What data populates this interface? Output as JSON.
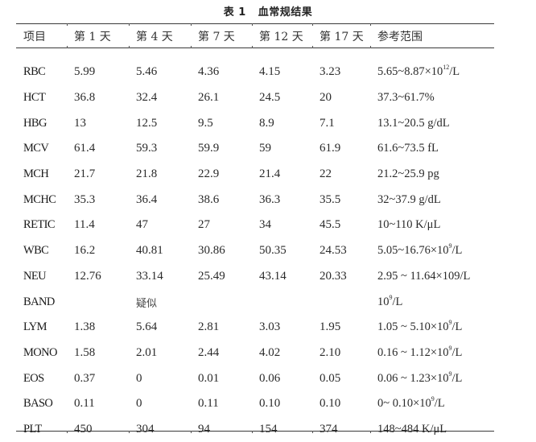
{
  "caption": {
    "label": "表 1",
    "title": "血常规结果"
  },
  "table": {
    "headers": [
      "项目",
      "第 1 天",
      "第 4 天",
      "第 7 天",
      "第 12 天",
      "第 17 天",
      "参考范围"
    ],
    "rows": [
      {
        "item": "RBC",
        "d1": "5.99",
        "d4": "5.46",
        "d7": "4.36",
        "d12": "4.15",
        "d17": "3.23",
        "ref_pre": "5.65~8.87×10",
        "ref_sup": "12",
        "ref_post": "/L"
      },
      {
        "item": "HCT",
        "d1": "36.8",
        "d4": "32.4",
        "d7": "26.1",
        "d12": "24.5",
        "d17": "20",
        "ref_pre": "37.3~61.7%",
        "ref_sup": "",
        "ref_post": ""
      },
      {
        "item": "HBG",
        "d1": "13",
        "d4": "12.5",
        "d7": "9.5",
        "d12": "8.9",
        "d17": "7.1",
        "ref_pre": "13.1~20.5 g/dL",
        "ref_sup": "",
        "ref_post": ""
      },
      {
        "item": "MCV",
        "d1": "61.4",
        "d4": "59.3",
        "d7": "59.9",
        "d12": "59",
        "d17": "61.9",
        "ref_pre": "61.6~73.5 fL",
        "ref_sup": "",
        "ref_post": ""
      },
      {
        "item": "MCH",
        "d1": "21.7",
        "d4": "21.8",
        "d7": "22.9",
        "d12": "21.4",
        "d17": "22",
        "ref_pre": "21.2~25.9 pg",
        "ref_sup": "",
        "ref_post": ""
      },
      {
        "item": "MCHC",
        "d1": "35.3",
        "d4": "36.4",
        "d7": "38.6",
        "d12": "36.3",
        "d17": "35.5",
        "ref_pre": "32~37.9 g/dL",
        "ref_sup": "",
        "ref_post": ""
      },
      {
        "item": "RETIC",
        "d1": "11.4",
        "d4": "47",
        "d7": "27",
        "d12": "34",
        "d17": "45.5",
        "ref_pre": "10~110 K/μL",
        "ref_sup": "",
        "ref_post": ""
      },
      {
        "item": "WBC",
        "d1": "16.2",
        "d4": "40.81",
        "d7": "30.86",
        "d12": "50.35",
        "d17": "24.53",
        "ref_pre": "5.05~16.76×10",
        "ref_sup": "9",
        "ref_post": "/L"
      },
      {
        "item": "NEU",
        "d1": "12.76",
        "d4": "33.14",
        "d7": "25.49",
        "d12": "43.14",
        "d17": "20.33",
        "ref_pre": "2.95 ~ 11.64×109/L",
        "ref_sup": "",
        "ref_post": ""
      },
      {
        "item": "BAND",
        "d1": "",
        "d4": "疑似",
        "d7": "",
        "d12": "",
        "d17": "",
        "ref_pre": "10",
        "ref_sup": "9",
        "ref_post": "/L"
      },
      {
        "item": "LYM",
        "d1": "1.38",
        "d4": "5.64",
        "d7": "2.81",
        "d12": "3.03",
        "d17": "1.95",
        "ref_pre": "1.05 ~ 5.10×10",
        "ref_sup": "9",
        "ref_post": "/L"
      },
      {
        "item": "MONO",
        "d1": "1.58",
        "d4": "2.01",
        "d7": "2.44",
        "d12": "4.02",
        "d17": "2.10",
        "ref_pre": "0.16 ~ 1.12×10",
        "ref_sup": "9",
        "ref_post": "/L"
      },
      {
        "item": "EOS",
        "d1": "0.37",
        "d4": "0",
        "d7": "0.01",
        "d12": "0.06",
        "d17": "0.05",
        "ref_pre": "0.06 ~ 1.23×10",
        "ref_sup": "9",
        "ref_post": "/L"
      },
      {
        "item": "BASO",
        "d1": "0.11",
        "d4": "0",
        "d7": "0.11",
        "d12": "0.10",
        "d17": "0.10",
        "ref_pre": "0~ 0.10×10",
        "ref_sup": "9",
        "ref_post": "/L"
      },
      {
        "item": "PLT",
        "d1": "450",
        "d4": "304",
        "d7": "94",
        "d12": "154",
        "d17": "374",
        "ref_pre": "148~484 K/μL",
        "ref_sup": "",
        "ref_post": ""
      }
    ]
  },
  "colors": {
    "text": "#2a2a2a",
    "rule": "#3a3a3a",
    "background": "#ffffff"
  }
}
